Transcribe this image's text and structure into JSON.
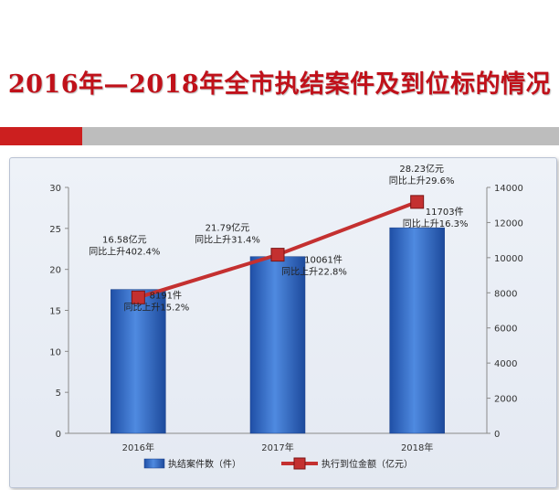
{
  "title": "2016年—2018年全市执结案件及到位标的情况",
  "colors": {
    "title": "#c0111a",
    "bar": "#2f67c8",
    "line": "#c43030",
    "accent_band": "#cc1f1f",
    "gray_band": "#bdbdbd"
  },
  "chart_data": {
    "type": "bar",
    "categories": [
      "2016年",
      "2017年",
      "2018年"
    ],
    "series": [
      {
        "name": "执结案件数（件）",
        "type": "bar",
        "axis": "right",
        "values": [
          8191,
          10061,
          11703
        ]
      },
      {
        "name": "执行到位金额（亿元）",
        "type": "line",
        "axis": "left",
        "values": [
          16.58,
          21.79,
          28.23
        ]
      }
    ],
    "y_left": {
      "ylim": [
        0,
        30
      ],
      "ticks": [
        0,
        5,
        10,
        15,
        20,
        25,
        30
      ]
    },
    "y_right": {
      "ylim": [
        0,
        14000
      ],
      "ticks": [
        0,
        2000,
        4000,
        6000,
        8000,
        10000,
        12000,
        14000
      ]
    },
    "amount_labels": [
      {
        "value": "16.58亿元",
        "change": "同比上升402.4%"
      },
      {
        "value": "21.79亿元",
        "change": "同比上升31.4%"
      },
      {
        "value": "28.23亿元",
        "change": "同比上升29.6%"
      }
    ],
    "count_labels": [
      {
        "value": "8191件",
        "change": "同比上升15.2%"
      },
      {
        "value": "10061件",
        "change": "同比上升22.8%"
      },
      {
        "value": "11703件",
        "change": "同比上升16.3%"
      }
    ],
    "legend_position": "bottom"
  }
}
